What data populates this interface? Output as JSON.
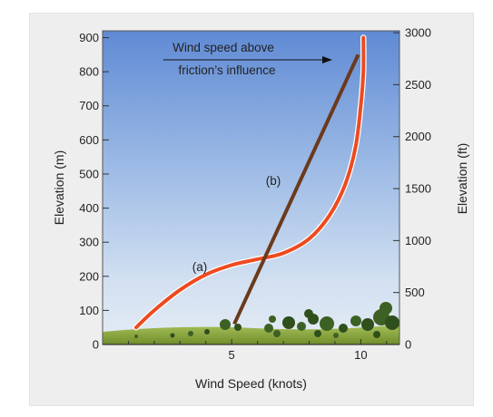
{
  "chart_data": {
    "type": "line",
    "title": "",
    "xlabel": "Wind Speed (knots)",
    "ylabel_left": "Elevation (m)",
    "ylabel_right": "Elevation (ft)",
    "xlim": [
      0,
      11.5
    ],
    "ylim_left": [
      0,
      920
    ],
    "x_ticks": [
      5,
      10
    ],
    "y_ticks_left": [
      0,
      100,
      200,
      300,
      400,
      500,
      600,
      700,
      800,
      900
    ],
    "y_ticks_right": [
      0,
      500,
      1000,
      1500,
      2000,
      2500,
      3000
    ],
    "grid": false,
    "background": "sky gradient with grass and trees at the bottom",
    "series": [
      {
        "name": "(a)",
        "color": "#ee4a20",
        "points": [
          [
            1.3,
            50
          ],
          [
            2.0,
            100
          ],
          [
            3.0,
            160
          ],
          [
            4.0,
            205
          ],
          [
            5.0,
            233
          ],
          [
            6.0,
            250
          ],
          [
            7.0,
            268
          ],
          [
            8.0,
            310
          ],
          [
            8.8,
            380
          ],
          [
            9.4,
            470
          ],
          [
            9.8,
            580
          ],
          [
            10.0,
            700
          ],
          [
            10.1,
            800
          ],
          [
            10.1,
            900
          ]
        ]
      },
      {
        "name": "(b)",
        "color": "#6b3a1c",
        "points": [
          [
            5.1,
            60
          ],
          [
            9.9,
            850
          ]
        ]
      }
    ],
    "annotations": [
      {
        "text_lines": [
          "Wind speed above",
          "friction’s influence"
        ],
        "arrow": "right"
      },
      {
        "text": "(a)"
      },
      {
        "text": "(b)"
      }
    ]
  }
}
